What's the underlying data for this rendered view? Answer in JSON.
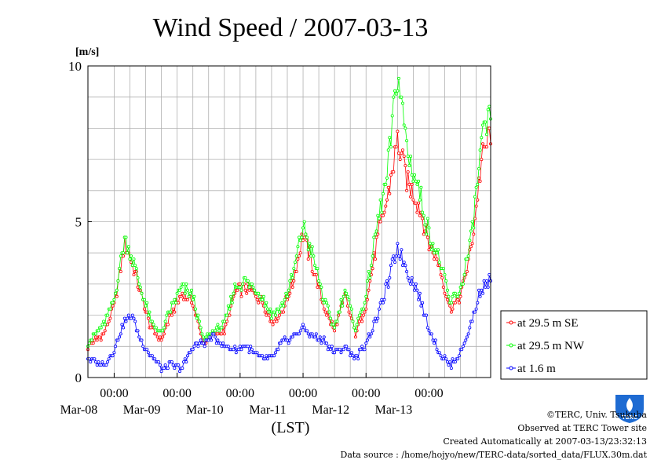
{
  "chart_data": {
    "type": "line",
    "title": "Wind Speed / 2007-03-13",
    "ylabel": "[m/s]",
    "xlabel": "(LST)",
    "ylim": [
      0,
      10
    ],
    "yticks": [
      "0",
      "5",
      "10"
    ],
    "xlim": [
      "2007-03-07T14:00",
      "2007-03-13T23:30"
    ],
    "xticks": [
      {
        "time": "00:00",
        "date": "Mar-08"
      },
      {
        "time": "00:00",
        "date": "Mar-09"
      },
      {
        "time": "00:00",
        "date": "Mar-10"
      },
      {
        "time": "00:00",
        "date": "Mar-11"
      },
      {
        "time": "00:00",
        "date": "Mar-12"
      },
      {
        "time": "00:00",
        "date": "Mar-13"
      }
    ],
    "grid": true,
    "legend_position": "right",
    "interval_minutes": 30,
    "series": [
      {
        "name": "at 29.5 m SE",
        "color": "#ff0000",
        "anchors": [
          [
            0,
            1.0
          ],
          [
            6,
            1.4
          ],
          [
            10,
            2.3
          ],
          [
            14,
            4.3
          ],
          [
            17,
            3.6
          ],
          [
            20,
            2.7
          ],
          [
            24,
            1.6
          ],
          [
            28,
            1.2
          ],
          [
            32,
            2.1
          ],
          [
            36,
            2.7
          ],
          [
            40,
            2.4
          ],
          [
            44,
            1.1
          ],
          [
            48,
            1.4
          ],
          [
            52,
            1.5
          ],
          [
            56,
            2.7
          ],
          [
            60,
            2.9
          ],
          [
            66,
            2.5
          ],
          [
            70,
            1.8
          ],
          [
            74,
            2.1
          ],
          [
            78,
            3.0
          ],
          [
            82,
            4.6
          ],
          [
            86,
            3.5
          ],
          [
            90,
            2.3
          ],
          [
            94,
            1.5
          ],
          [
            98,
            2.6
          ],
          [
            102,
            1.4
          ],
          [
            106,
            2.3
          ],
          [
            110,
            4.3
          ],
          [
            114,
            5.7
          ],
          [
            118,
            7.6
          ],
          [
            122,
            6.2
          ],
          [
            126,
            5.6
          ],
          [
            130,
            4.3
          ],
          [
            134,
            3.6
          ],
          [
            138,
            2.2
          ],
          [
            142,
            2.6
          ],
          [
            146,
            4.1
          ],
          [
            150,
            6.9
          ],
          [
            154,
            8.1
          ],
          [
            158,
            7.3
          ],
          [
            162,
            7.9
          ],
          [
            164,
            5.2
          ],
          [
            168,
            3.5
          ],
          [
            170,
            4.6
          ],
          [
            174,
            4.1
          ],
          [
            178,
            2.4
          ],
          [
            180,
            1.0
          ],
          [
            182,
            3.1
          ],
          [
            186,
            5.7
          ],
          [
            190,
            8.1
          ],
          [
            194,
            6.5
          ],
          [
            198,
            5.2
          ],
          [
            202,
            4.7
          ],
          [
            206,
            4.5
          ],
          [
            210,
            3.9
          ],
          [
            214,
            7.1
          ],
          [
            216,
            8.5
          ]
        ]
      },
      {
        "name": "at 29.5 m NW",
        "color": "#00ff00",
        "anchors": [
          [
            0,
            1.1
          ],
          [
            6,
            1.7
          ],
          [
            10,
            2.5
          ],
          [
            14,
            4.5
          ],
          [
            17,
            3.8
          ],
          [
            20,
            2.9
          ],
          [
            24,
            1.8
          ],
          [
            28,
            1.4
          ],
          [
            32,
            2.3
          ],
          [
            36,
            2.9
          ],
          [
            40,
            2.6
          ],
          [
            44,
            1.2
          ],
          [
            48,
            1.5
          ],
          [
            52,
            1.7
          ],
          [
            56,
            2.9
          ],
          [
            60,
            3.1
          ],
          [
            66,
            2.7
          ],
          [
            70,
            2.0
          ],
          [
            74,
            2.3
          ],
          [
            78,
            3.2
          ],
          [
            82,
            4.9
          ],
          [
            86,
            3.8
          ],
          [
            90,
            2.5
          ],
          [
            94,
            1.6
          ],
          [
            98,
            2.8
          ],
          [
            102,
            1.6
          ],
          [
            106,
            2.6
          ],
          [
            110,
            4.8
          ],
          [
            114,
            6.4
          ],
          [
            118,
            9.8
          ],
          [
            122,
            7.2
          ],
          [
            126,
            6.1
          ],
          [
            130,
            4.6
          ],
          [
            134,
            3.8
          ],
          [
            138,
            2.4
          ],
          [
            142,
            2.8
          ],
          [
            146,
            4.4
          ],
          [
            150,
            7.4
          ],
          [
            154,
            8.6
          ],
          [
            158,
            7.9
          ],
          [
            162,
            9.3
          ],
          [
            164,
            5.7
          ],
          [
            168,
            3.8
          ],
          [
            170,
            4.9
          ],
          [
            174,
            4.4
          ],
          [
            178,
            2.6
          ],
          [
            180,
            1.2
          ],
          [
            182,
            3.4
          ],
          [
            186,
            6.0
          ],
          [
            190,
            7.8
          ],
          [
            194,
            6.3
          ],
          [
            198,
            5.0
          ],
          [
            202,
            4.5
          ],
          [
            206,
            4.3
          ],
          [
            210,
            3.7
          ],
          [
            214,
            7.4
          ],
          [
            216,
            8.6
          ]
        ]
      },
      {
        "name": "at 1.6 m",
        "color": "#0000ff",
        "anchors": [
          [
            0,
            0.6
          ],
          [
            6,
            0.4
          ],
          [
            10,
            0.9
          ],
          [
            14,
            1.8
          ],
          [
            17,
            2.0
          ],
          [
            20,
            1.2
          ],
          [
            24,
            0.7
          ],
          [
            28,
            0.3
          ],
          [
            32,
            0.4
          ],
          [
            36,
            0.3
          ],
          [
            40,
            1.0
          ],
          [
            44,
            1.1
          ],
          [
            48,
            1.3
          ],
          [
            52,
            1.0
          ],
          [
            56,
            0.9
          ],
          [
            60,
            1.0
          ],
          [
            66,
            0.6
          ],
          [
            70,
            0.6
          ],
          [
            74,
            1.1
          ],
          [
            78,
            1.3
          ],
          [
            82,
            1.6
          ],
          [
            86,
            1.3
          ],
          [
            90,
            1.2
          ],
          [
            94,
            0.8
          ],
          [
            98,
            1.0
          ],
          [
            102,
            0.6
          ],
          [
            106,
            1.1
          ],
          [
            110,
            1.9
          ],
          [
            114,
            2.9
          ],
          [
            118,
            4.2
          ],
          [
            122,
            3.4
          ],
          [
            126,
            2.7
          ],
          [
            130,
            1.6
          ],
          [
            134,
            0.8
          ],
          [
            138,
            0.4
          ],
          [
            142,
            0.8
          ],
          [
            146,
            1.7
          ],
          [
            150,
            2.9
          ],
          [
            154,
            3.2
          ],
          [
            158,
            3.1
          ],
          [
            162,
            2.4
          ],
          [
            164,
            1.8
          ],
          [
            168,
            1.3
          ],
          [
            170,
            1.6
          ],
          [
            174,
            1.0
          ],
          [
            178,
            0.5
          ],
          [
            180,
            0.4
          ],
          [
            182,
            1.1
          ],
          [
            186,
            2.4
          ],
          [
            190,
            2.9
          ],
          [
            194,
            2.6
          ],
          [
            198,
            2.3
          ],
          [
            202,
            1.8
          ],
          [
            206,
            1.5
          ],
          [
            210,
            1.0
          ],
          [
            214,
            2.9
          ],
          [
            216,
            2.5
          ]
        ]
      }
    ]
  },
  "footer": {
    "credit": "©TERC, Univ. Tsukuba",
    "site": "Observed at TERC Tower site",
    "created": "Created Automatically at 2007-03-13/23:32:13",
    "source": "Data source : /home/hojyo/new/TERC-data/sorted_data/FLUX.30m.dat",
    "logo_text": "TERC"
  }
}
